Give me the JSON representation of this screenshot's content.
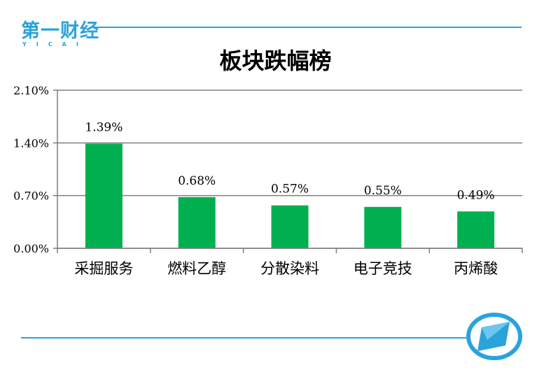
{
  "logo": {
    "main": "第一财经",
    "sub": "YICAI"
  },
  "chart_data": {
    "type": "bar",
    "title": "板块跌幅榜",
    "categories": [
      "采掘服务",
      "燃料乙醇",
      "分散染料",
      "电子竞技",
      "丙烯酸"
    ],
    "values": [
      1.39,
      0.68,
      0.57,
      0.55,
      0.49
    ],
    "value_labels": [
      "1.39%",
      "0.68%",
      "0.57%",
      "0.55%",
      "0.49%"
    ],
    "ylim": [
      0,
      2.1
    ],
    "yticks": [
      "0.00%",
      "0.70%",
      "1.40%",
      "2.10%"
    ],
    "ytick_values": [
      0,
      0.7,
      1.4,
      2.1
    ],
    "grid": true,
    "bar_color": "#00b050",
    "xlabel": "",
    "ylabel": ""
  },
  "colors": {
    "accent": "#2aa3dc",
    "bar": "#00b050"
  }
}
